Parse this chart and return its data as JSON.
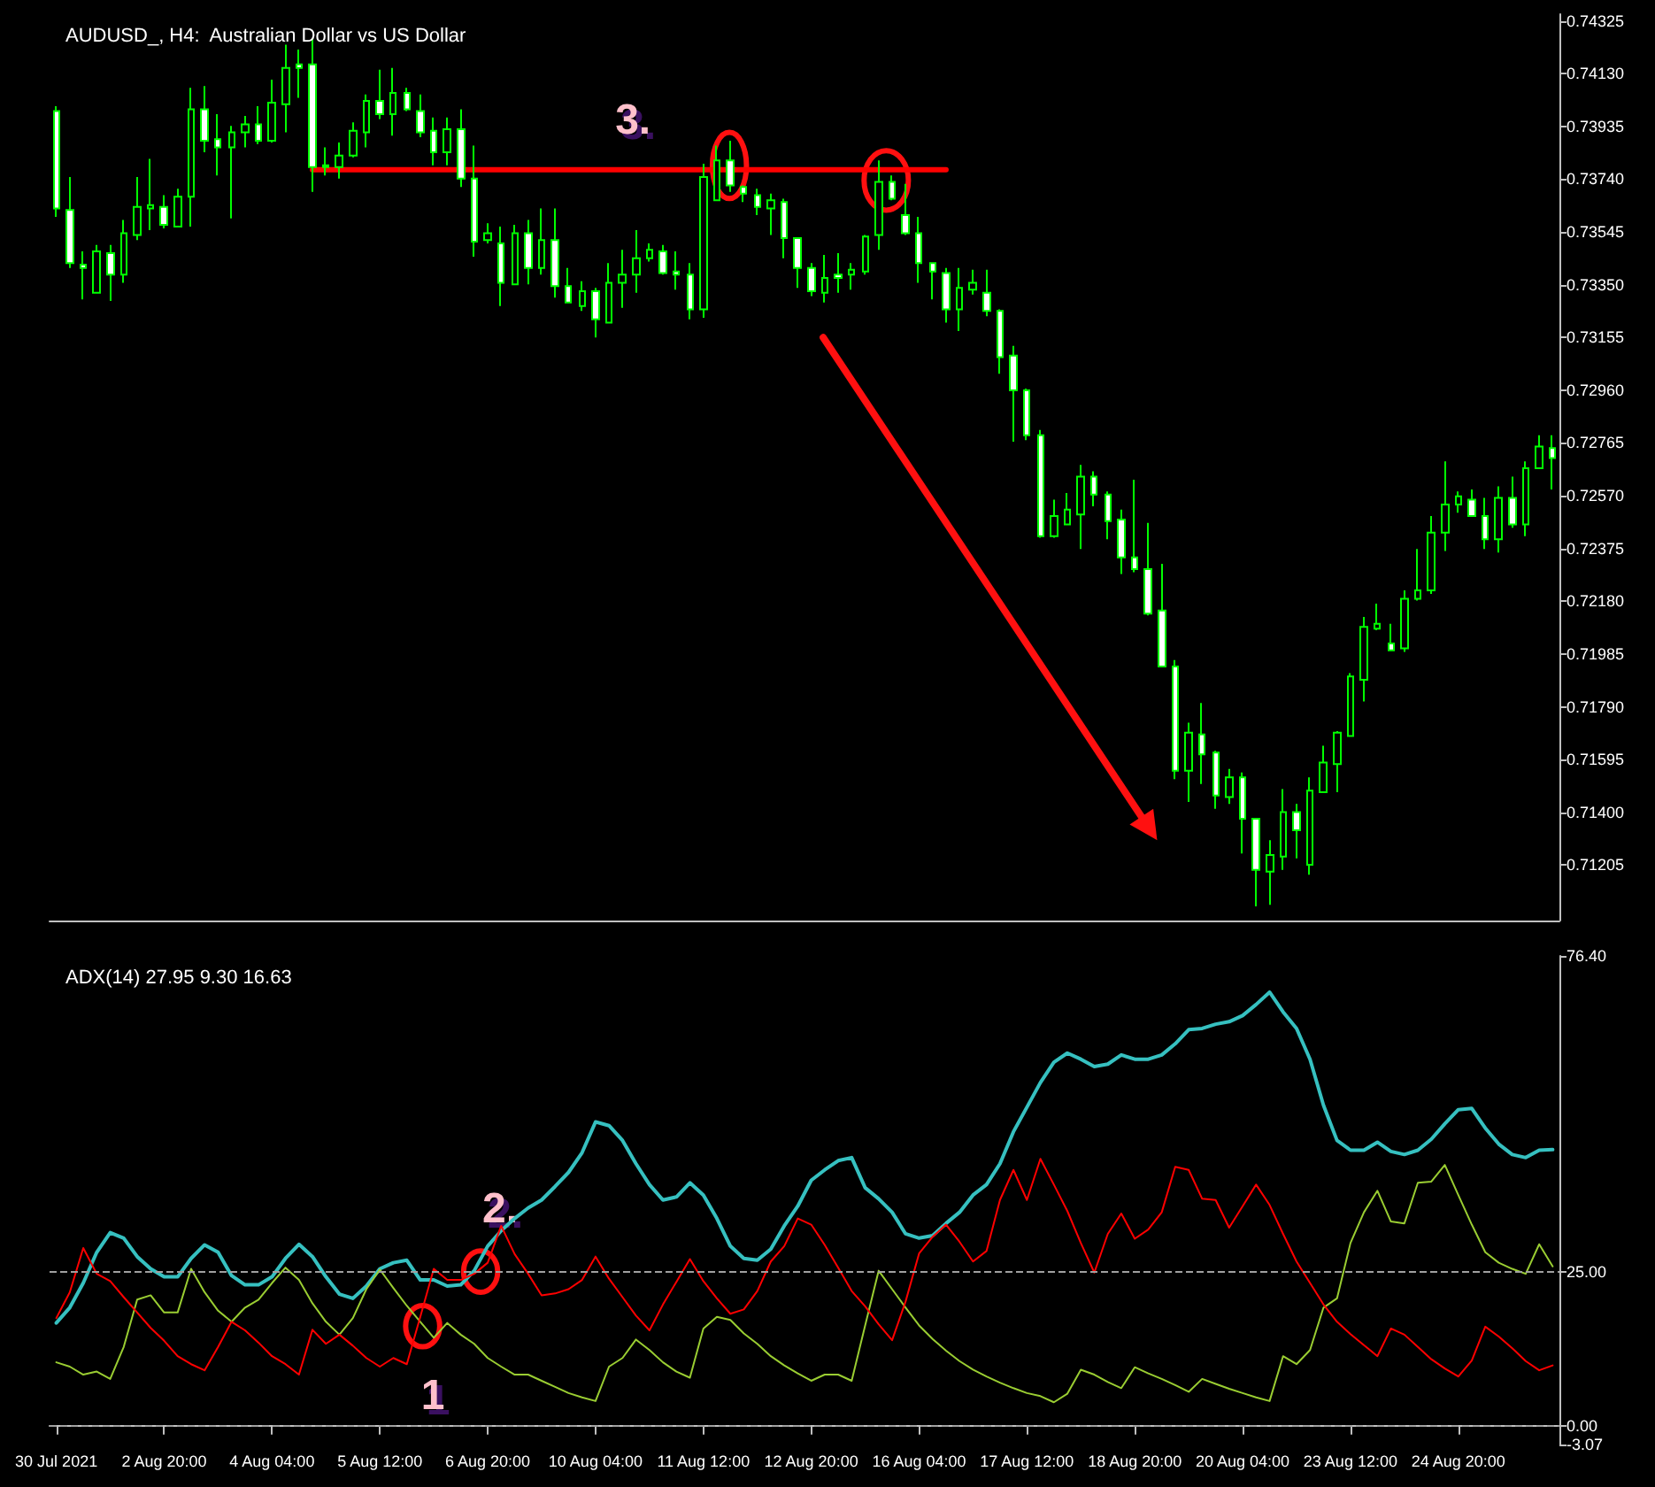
{
  "chart_data": [
    {
      "type": "candlestick",
      "title": "AUDUSD_, H4:  Australian Dollar vs US Dollar",
      "color": "#00ff00",
      "categories": [
        null,
        null,
        null,
        null,
        null,
        null,
        null,
        null,
        null,
        null,
        null,
        null,
        null,
        null,
        null,
        null,
        null,
        null,
        null,
        null,
        null,
        null,
        null,
        null,
        null,
        null,
        null,
        null,
        null,
        null,
        null,
        null,
        null,
        null,
        null,
        null,
        null,
        null,
        null,
        null,
        null,
        null,
        null,
        null,
        null,
        null,
        null,
        null,
        null,
        null,
        null,
        null,
        null,
        null,
        null,
        null,
        null,
        null,
        null,
        null,
        null,
        null,
        null,
        null,
        null,
        null,
        null,
        null,
        null,
        null,
        null,
        null,
        null,
        null,
        null,
        null,
        null,
        null,
        null,
        null,
        null,
        null,
        null,
        null,
        null,
        null,
        null,
        null,
        null,
        null,
        null,
        null,
        null,
        null,
        null,
        null,
        null,
        null,
        null,
        null,
        null,
        null,
        null,
        null,
        null,
        null,
        null,
        null,
        null,
        null,
        null,
        null
      ],
      "ohlc": [
        [
          0.73992,
          0.7401,
          0.73601,
          0.73632
        ],
        [
          0.73626,
          0.73748,
          0.73412,
          0.7343
        ],
        [
          0.73424,
          0.73473,
          0.73296,
          0.73412
        ],
        [
          0.7332,
          0.73497,
          0.7332,
          0.73473
        ],
        [
          0.73467,
          0.73497,
          0.7329,
          0.73387
        ],
        [
          0.73387,
          0.73589,
          0.73357,
          0.7354
        ],
        [
          0.73534,
          0.73748,
          0.73515,
          0.73638
        ],
        [
          0.73632,
          0.73815,
          0.73552,
          0.73644
        ],
        [
          0.73638,
          0.73681,
          0.73558,
          0.73571
        ],
        [
          0.73565,
          0.73705,
          0.73565,
          0.73675
        ],
        [
          0.73675,
          0.74078,
          0.73565,
          0.73998
        ],
        [
          0.73998,
          0.74084,
          0.7384,
          0.73882
        ],
        [
          0.73888,
          0.7398,
          0.73754,
          0.73858
        ],
        [
          0.73858,
          0.73937,
          0.73595,
          0.73913
        ],
        [
          0.73913,
          0.73974,
          0.73858,
          0.73943
        ],
        [
          0.73943,
          0.7401,
          0.7387,
          0.73882
        ],
        [
          0.73882,
          0.74108,
          0.73876,
          0.74023
        ],
        [
          0.74017,
          0.74237,
          0.73913,
          0.74151
        ],
        [
          0.74164,
          0.74219,
          0.74041,
          0.74151
        ],
        [
          0.74164,
          0.74261,
          0.73693,
          0.73785
        ],
        [
          0.73785,
          0.73858,
          0.73754,
          0.73791
        ],
        [
          0.73785,
          0.73876,
          0.73742,
          0.73827
        ],
        [
          0.73827,
          0.7395,
          0.73821,
          0.73919
        ],
        [
          0.73913,
          0.74053,
          0.73858,
          0.74029
        ],
        [
          0.74029,
          0.74145,
          0.73962,
          0.7398
        ],
        [
          0.7398,
          0.74151,
          0.73901,
          0.74059
        ],
        [
          0.74059,
          0.74078,
          0.73992,
          0.73998
        ],
        [
          0.73992,
          0.74053,
          0.73895,
          0.73913
        ],
        [
          0.73919,
          0.73968,
          0.73791,
          0.7384
        ],
        [
          0.7384,
          0.73968,
          0.73791,
          0.73925
        ],
        [
          0.73925,
          0.73998,
          0.73711,
          0.73742
        ],
        [
          0.73742,
          0.73864,
          0.73454,
          0.73509
        ],
        [
          0.73515,
          0.73577,
          0.73503,
          0.7354
        ],
        [
          0.73503,
          0.73565,
          0.73271,
          0.73357
        ],
        [
          0.73351,
          0.73571,
          0.73351,
          0.7354
        ],
        [
          0.7354,
          0.73589,
          0.73351,
          0.73412
        ],
        [
          0.73412,
          0.73632,
          0.73387,
          0.73515
        ],
        [
          0.73515,
          0.73632,
          0.73302,
          0.73345
        ],
        [
          0.73345,
          0.73412,
          0.73284,
          0.73284
        ],
        [
          0.73271,
          0.73363,
          0.73253,
          0.73326
        ],
        [
          0.73326,
          0.73338,
          0.73155,
          0.73222
        ],
        [
          0.7321,
          0.7343,
          0.7321,
          0.73357
        ],
        [
          0.73357,
          0.73479,
          0.73265,
          0.73387
        ],
        [
          0.73387,
          0.73552,
          0.7332,
          0.73448
        ],
        [
          0.73448,
          0.73503,
          0.73436,
          0.73479
        ],
        [
          0.73473,
          0.73497,
          0.73387,
          0.73393
        ],
        [
          0.73399,
          0.73473,
          0.73332,
          0.73387
        ],
        [
          0.73387,
          0.7343,
          0.73222,
          0.73259
        ],
        [
          0.73259,
          0.73797,
          0.73228,
          0.73748
        ],
        [
          0.73662,
          0.73864,
          0.73662,
          0.73809
        ],
        [
          0.73809,
          0.73882,
          0.73693,
          0.73717
        ],
        [
          0.73711,
          0.73717,
          0.73656,
          0.73687
        ],
        [
          0.73681,
          0.73705,
          0.73607,
          0.73638
        ],
        [
          0.73632,
          0.73687,
          0.73534,
          0.73662
        ],
        [
          0.73656,
          0.73668,
          0.73448,
          0.73522
        ],
        [
          0.73522,
          0.73522,
          0.73338,
          0.73412
        ],
        [
          0.73412,
          0.7343,
          0.73308,
          0.73326
        ],
        [
          0.7332,
          0.7346,
          0.73284,
          0.73375
        ],
        [
          0.73387,
          0.73467,
          0.7332,
          0.73375
        ],
        [
          0.73387,
          0.7343,
          0.73332,
          0.73405
        ],
        [
          0.73399,
          0.73534,
          0.73387,
          0.73528
        ],
        [
          0.73534,
          0.73809,
          0.73479,
          0.7373
        ],
        [
          0.7373,
          0.73754,
          0.73662,
          0.73668
        ],
        [
          0.73607,
          0.73723,
          0.73534,
          0.7354
        ],
        [
          0.7354,
          0.73601,
          0.73357,
          0.7343
        ],
        [
          0.7343,
          0.7343,
          0.73296,
          0.73399
        ],
        [
          0.73393,
          0.73412,
          0.7321,
          0.73259
        ],
        [
          0.73259,
          0.73412,
          0.73179,
          0.73338
        ],
        [
          0.73332,
          0.73405,
          0.73314,
          0.73357
        ],
        [
          0.7332,
          0.73405,
          0.73234,
          0.73253
        ],
        [
          0.73253,
          0.73259,
          0.73021,
          0.73082
        ],
        [
          0.73088,
          0.73124,
          0.7277,
          0.7296
        ],
        [
          0.7296,
          0.72966,
          0.72776,
          0.72794
        ],
        [
          0.72794,
          0.72813,
          0.72415,
          0.72421
        ],
        [
          0.72421,
          0.72556,
          0.72415,
          0.72495
        ],
        [
          0.72464,
          0.7258,
          0.72464,
          0.72519
        ],
        [
          0.72501,
          0.72684,
          0.72373,
          0.72641
        ],
        [
          0.72641,
          0.7266,
          0.72531,
          0.72574
        ],
        [
          0.72574,
          0.72586,
          0.72409,
          0.72476
        ],
        [
          0.72482,
          0.72519,
          0.72281,
          0.72342
        ],
        [
          0.72342,
          0.72629,
          0.72287,
          0.72299
        ],
        [
          0.72299,
          0.7247,
          0.72128,
          0.72134
        ],
        [
          0.72146,
          0.72318,
          0.71939,
          0.71939
        ],
        [
          0.71939,
          0.71963,
          0.71523,
          0.71554
        ],
        [
          0.71554,
          0.71731,
          0.71438,
          0.71694
        ],
        [
          0.71688,
          0.71804,
          0.71505,
          0.71614
        ],
        [
          0.71621,
          0.71627,
          0.71413,
          0.71462
        ],
        [
          0.71456,
          0.7156,
          0.71431,
          0.71529
        ],
        [
          0.71529,
          0.71547,
          0.71248,
          0.71376
        ],
        [
          0.71376,
          0.71376,
          0.71052,
          0.71187
        ],
        [
          0.71181,
          0.71297,
          0.71058,
          0.71242
        ],
        [
          0.71236,
          0.71486,
          0.71187,
          0.71401
        ],
        [
          0.71401,
          0.71431,
          0.7123,
          0.71334
        ],
        [
          0.71206,
          0.71529,
          0.71169,
          0.7148
        ],
        [
          0.71474,
          0.71646,
          0.71474,
          0.71584
        ],
        [
          0.71578,
          0.717,
          0.71474,
          0.71694
        ],
        [
          0.71682,
          0.71914,
          0.71682,
          0.71902
        ],
        [
          0.7189,
          0.72122,
          0.7181,
          0.72085
        ],
        [
          0.72079,
          0.72171,
          0.72073,
          0.72097
        ],
        [
          0.72024,
          0.72097,
          0.71999,
          0.71999
        ],
        [
          0.72006,
          0.7222,
          0.71993,
          0.72189
        ],
        [
          0.72189,
          0.72373,
          0.72183,
          0.7222
        ],
        [
          0.7222,
          0.72495,
          0.72207,
          0.72434
        ],
        [
          0.72434,
          0.72697,
          0.72366,
          0.72538
        ],
        [
          0.72538,
          0.72586,
          0.72507,
          0.72568
        ],
        [
          0.72556,
          0.72593,
          0.72495,
          0.72495
        ],
        [
          0.72495,
          0.72562,
          0.72373,
          0.72409
        ],
        [
          0.72409,
          0.72605,
          0.7236,
          0.72562
        ],
        [
          0.72562,
          0.72641,
          0.72452,
          0.72464
        ],
        [
          0.72464,
          0.72697,
          0.72421,
          0.72672
        ],
        [
          0.72672,
          0.72794,
          0.72672,
          0.72752
        ],
        [
          0.72746,
          0.72794,
          0.72593,
          0.72709
        ]
      ],
      "series": [
        {
          "type": "line",
          "color": "#ff0000",
          "values": [
            null,
            null,
            null,
            null,
            null,
            null,
            null,
            null,
            null,
            null,
            null,
            null,
            null,
            null,
            null,
            null,
            null,
            null,
            null,
            0.73775,
            0.73775,
            0.73775,
            0.73775,
            0.73775,
            0.73775,
            0.73775,
            0.73775,
            0.73775,
            0.73775,
            0.73775,
            0.73775,
            0.73775,
            0.73775,
            0.73775,
            0.73775,
            0.73775,
            0.73775,
            0.73775,
            0.73775,
            0.73775,
            0.73775,
            0.73775,
            0.73775,
            0.73775,
            0.73775,
            0.73775,
            0.73775,
            0.73775,
            0.73775,
            0.73775,
            0.73775,
            0.73775,
            0.73775,
            0.73775,
            0.73775,
            0.73775,
            0.73775,
            0.73775,
            0.73775,
            0.73775,
            0.73775,
            0.73775,
            0.73775,
            0.73775,
            0.73775,
            0.73775,
            0.73775,
            null,
            null,
            null,
            null,
            null,
            null,
            null,
            null,
            null,
            null,
            null,
            null,
            null,
            null,
            null,
            null,
            null,
            null,
            null,
            null,
            null,
            null,
            null,
            null,
            null,
            null,
            null,
            null,
            null,
            null,
            null,
            null,
            null,
            null,
            null,
            null,
            null,
            null,
            null,
            null,
            null,
            null,
            null,
            null,
            null
          ]
        }
      ],
      "ylim": [
        0.71,
        0.7435
      ],
      "yticks": [
        {
          "value": 0.71205,
          "label": "0.71205"
        },
        {
          "value": 0.714,
          "label": "0.71400"
        },
        {
          "value": 0.71595,
          "label": "0.71595"
        },
        {
          "value": 0.7179,
          "label": "0.71790"
        },
        {
          "value": 0.71985,
          "label": "0.71985"
        },
        {
          "value": 0.7218,
          "label": "0.72180"
        },
        {
          "value": 0.72375,
          "label": "0.72375"
        },
        {
          "value": 0.7257,
          "label": "0.72570"
        },
        {
          "value": 0.72765,
          "label": "0.72765"
        },
        {
          "value": 0.7296,
          "label": "0.72960"
        },
        {
          "value": 0.73155,
          "label": "0.73155"
        },
        {
          "value": 0.7335,
          "label": "0.73350"
        },
        {
          "value": 0.73545,
          "label": "0.73545"
        },
        {
          "value": 0.7374,
          "label": "0.73740"
        },
        {
          "value": 0.73935,
          "label": "0.73935"
        },
        {
          "value": 0.7413,
          "label": "0.74130"
        },
        {
          "value": 0.74325,
          "label": "0.74325"
        }
      ],
      "annotations": [
        "3."
      ]
    },
    {
      "type": "line",
      "title": "ADX(14) 27.95 9.30 16.63",
      "categories": [
        "30 Jul 2021",
        null,
        null,
        null,
        null,
        null,
        null,
        null,
        "2 Aug 20:00",
        null,
        null,
        null,
        null,
        null,
        null,
        null,
        "4 Aug 04:00",
        null,
        null,
        null,
        null,
        null,
        null,
        null,
        "5 Aug 12:00",
        null,
        null,
        null,
        null,
        null,
        null,
        null,
        "6 Aug 20:00",
        null,
        null,
        null,
        null,
        null,
        null,
        null,
        "10 Aug 04:00",
        null,
        null,
        null,
        null,
        null,
        null,
        null,
        "11 Aug 12:00",
        null,
        null,
        null,
        null,
        null,
        null,
        null,
        "12 Aug 20:00",
        null,
        null,
        null,
        null,
        null,
        null,
        null,
        "16 Aug 04:00",
        null,
        null,
        null,
        null,
        null,
        null,
        null,
        "17 Aug 12:00",
        null,
        null,
        null,
        null,
        null,
        null,
        null,
        "18 Aug 20:00",
        null,
        null,
        null,
        null,
        null,
        null,
        null,
        "20 Aug 04:00",
        null,
        null,
        null,
        null,
        null,
        null,
        null,
        "23 Aug 12:00",
        null,
        null,
        null,
        null,
        null,
        null,
        null,
        "24 Aug 20:00",
        null,
        null,
        null,
        null,
        null,
        null,
        null
      ],
      "series": [
        {
          "color": "#36c0c0",
          "values": [
            16.7,
            19.2,
            23.2,
            28.2,
            31.4,
            30.5,
            27.5,
            25.5,
            24.2,
            24.2,
            27.2,
            29.4,
            28.2,
            24.4,
            22.9,
            22.9,
            24.2,
            27.2,
            29.5,
            27.5,
            24.2,
            21.4,
            20.7,
            22.7,
            25.5,
            26.5,
            26.9,
            23.7,
            23.7,
            22.7,
            22.9,
            25.2,
            29.2,
            31.7,
            33.7,
            35.4,
            36.7,
            38.9,
            41.2,
            44.4,
            49.4,
            48.8,
            46.4,
            42.6,
            39.2,
            36.7,
            37.2,
            39.5,
            37.5,
            33.7,
            29.2,
            27.2,
            26.9,
            28.7,
            32.5,
            35.7,
            39.9,
            41.6,
            43.1,
            43.6,
            38.7,
            36.9,
            34.7,
            31.2,
            30.5,
            30.9,
            32.9,
            34.7,
            37.5,
            39.2,
            42.6,
            47.8,
            51.8,
            55.8,
            59.1,
            60.6,
            59.6,
            58.4,
            58.8,
            60.3,
            59.6,
            59.6,
            60.3,
            62.1,
            64.4,
            64.6,
            65.3,
            65.7,
            66.7,
            68.5,
            70.5,
            67.3,
            64.6,
            59.6,
            52.1,
            46.4,
            44.8,
            44.8,
            46.1,
            44.6,
            44.1,
            44.8,
            46.6,
            49.1,
            51.4,
            51.6,
            48.4,
            45.8,
            44.1,
            43.6,
            44.8,
            44.9
          ]
        },
        {
          "color": "#9acd32",
          "values": [
            10.3,
            9.6,
            8.3,
            8.8,
            7.6,
            12.8,
            20.5,
            21.2,
            18.4,
            18.4,
            25.5,
            21.7,
            18.7,
            16.9,
            19.2,
            20.5,
            23.2,
            25.7,
            23.7,
            19.9,
            16.9,
            14.8,
            17.5,
            22.2,
            25.4,
            22.4,
            19.5,
            16.9,
            14.3,
            16.7,
            14.8,
            13.3,
            11.0,
            9.6,
            8.3,
            8.3,
            7.3,
            6.3,
            5.3,
            4.6,
            4.0,
            9.6,
            11.0,
            14.0,
            12.3,
            10.3,
            8.8,
            7.8,
            15.8,
            17.7,
            17.2,
            15.0,
            13.3,
            11.3,
            9.8,
            8.5,
            7.3,
            8.3,
            8.3,
            7.3,
            16.3,
            25.2,
            22.2,
            19.2,
            16.3,
            14.1,
            12.2,
            10.5,
            9.1,
            8.0,
            7.0,
            6.1,
            5.3,
            4.8,
            3.8,
            5.2,
            9.1,
            8.3,
            7.1,
            6.1,
            9.5,
            8.5,
            7.6,
            6.6,
            5.5,
            7.6,
            6.8,
            6.0,
            5.3,
            4.6,
            4.0,
            11.3,
            10.0,
            12.3,
            19.2,
            20.7,
            29.7,
            34.7,
            38.2,
            33.2,
            32.9,
            39.5,
            39.7,
            42.4,
            37.5,
            32.7,
            28.2,
            26.5,
            25.5,
            24.7,
            29.5,
            25.9
          ]
        },
        {
          "color": "#ff0000",
          "values": [
            17.5,
            21.7,
            28.9,
            24.7,
            23.5,
            20.9,
            18.4,
            15.9,
            13.8,
            11.3,
            10.0,
            9.0,
            12.8,
            16.9,
            15.5,
            13.5,
            11.3,
            10.0,
            8.3,
            15.6,
            13.3,
            14.8,
            13.0,
            11.0,
            9.6,
            11.0,
            10.0,
            17.7,
            25.5,
            23.7,
            23.7,
            24.7,
            26.5,
            32.5,
            27.9,
            24.7,
            21.2,
            21.5,
            22.2,
            23.7,
            27.5,
            23.9,
            20.9,
            17.9,
            15.5,
            19.7,
            23.4,
            27.1,
            23.5,
            20.7,
            18.2,
            18.9,
            21.9,
            26.7,
            29.2,
            33.7,
            32.7,
            29.4,
            25.7,
            21.9,
            19.4,
            16.5,
            13.9,
            20.2,
            28.0,
            30.7,
            32.7,
            29.9,
            26.7,
            28.4,
            36.7,
            41.6,
            36.7,
            43.4,
            39.2,
            34.9,
            29.7,
            24.9,
            31.2,
            34.5,
            30.4,
            31.9,
            34.7,
            42.1,
            41.6,
            36.9,
            36.7,
            32.2,
            35.7,
            39.2,
            35.9,
            31.2,
            26.7,
            23.2,
            19.7,
            16.9,
            14.9,
            13.1,
            11.3,
            15.8,
            14.8,
            12.8,
            10.8,
            9.3,
            8.0,
            10.6,
            16.1,
            14.5,
            12.6,
            10.5,
            9.0,
            9.8
          ]
        }
      ],
      "ylim": [
        -3.07,
        76.4
      ],
      "yticks": [
        {
          "value": -3.07,
          "label": "-3.07"
        },
        {
          "value": 0,
          "label": "0.00"
        },
        {
          "value": 25,
          "label": "25.00"
        },
        {
          "value": 76.4,
          "label": "76.40"
        }
      ],
      "ref_lines": [
        {
          "axis": "y",
          "value": 25,
          "color": "#a0a0a0",
          "line_style": "dashed"
        },
        {
          "axis": "y",
          "value": 0,
          "color": "#a0a0a0",
          "line_style": "dashed"
        }
      ],
      "annotations": [
        "1",
        "2."
      ]
    }
  ]
}
